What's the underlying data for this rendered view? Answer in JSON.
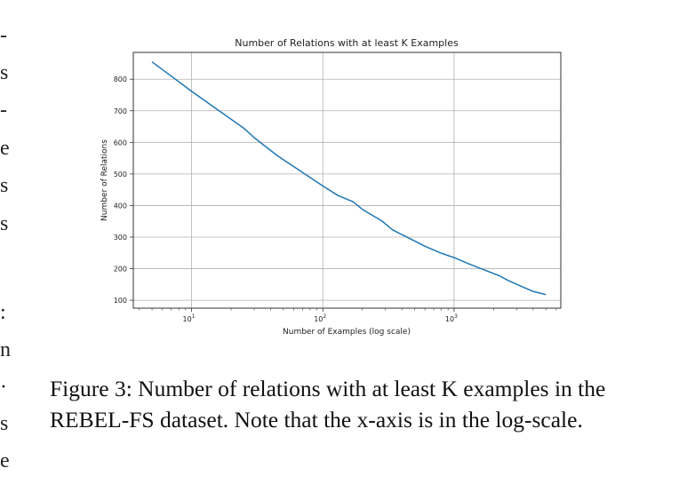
{
  "left_fragments": [
    "-",
    "s",
    "-",
    "e",
    "s",
    "s",
    ":",
    "n",
    "·",
    "s",
    "e"
  ],
  "chart_data": {
    "type": "line",
    "title": "Number of Relations with at least K Examples",
    "xlabel": "Number of Examples (log scale)",
    "ylabel": "Number of Relations",
    "x_scale": "log",
    "xlim": [
      3.6,
      6500
    ],
    "ylim": [
      75,
      885
    ],
    "x_ticks": [
      10,
      100,
      1000
    ],
    "x_tick_labels": [
      "10",
      "10",
      "10"
    ],
    "x_tick_exponents": [
      "1",
      "2",
      "3"
    ],
    "y_ticks": [
      100,
      200,
      300,
      400,
      500,
      600,
      700,
      800
    ],
    "y_tick_labels": [
      "100",
      "200",
      "300",
      "400",
      "500",
      "600",
      "700",
      "800"
    ],
    "grid": true,
    "line_color": "#1f77b4",
    "series": [
      {
        "x": [
          5,
          7,
          10,
          15,
          25,
          30,
          45,
          70,
          100,
          130,
          170,
          200,
          280,
          340,
          400,
          500,
          600,
          800,
          1000,
          1300,
          1700,
          2200,
          2600,
          3300,
          4000,
          5000
        ],
        "y": [
          855,
          810,
          762,
          710,
          645,
          615,
          558,
          505,
          462,
          432,
          412,
          388,
          352,
          323,
          308,
          288,
          271,
          249,
          235,
          215,
          196,
          178,
          162,
          143,
          128,
          118
        ]
      }
    ]
  },
  "caption": {
    "text": "Figure 3: Number of relations with at least K examples in the REBEL-FS dataset. Note that the x-axis is in the log-scale."
  }
}
